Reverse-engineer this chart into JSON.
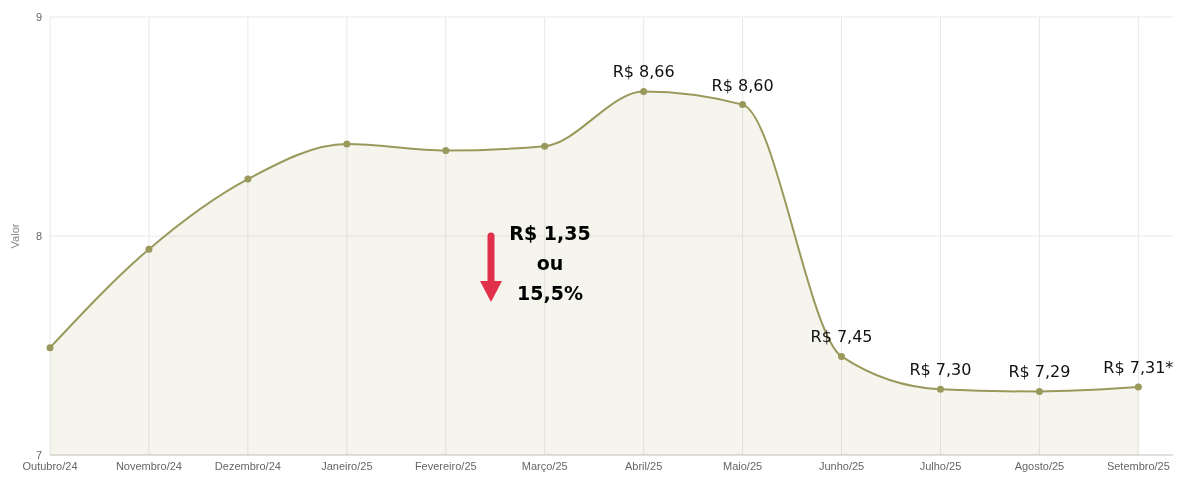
{
  "chart_data": {
    "type": "area",
    "ylabel": "Valor",
    "categories": [
      "Outubro/24",
      "Novembro/24",
      "Dezembro/24",
      "Janeiro/25",
      "Fevereiro/25",
      "Março/25",
      "Abril/25",
      "Maio/25",
      "Junho/25",
      "Julho/25",
      "Agosto/25",
      "Setembro/25"
    ],
    "series": [
      {
        "color": "#99995c",
        "values": [
          7.49,
          7.94,
          8.26,
          8.42,
          8.39,
          8.41,
          8.66,
          8.6,
          7.45,
          7.3,
          7.29,
          7.31
        ],
        "value_labels": [
          null,
          null,
          null,
          null,
          null,
          null,
          "R$ 8,66",
          "R$ 8,60",
          "R$ 7,45",
          "R$ 7,30",
          "R$ 7,29",
          "R$ 7,31*"
        ]
      }
    ],
    "ylim": [
      7,
      9
    ],
    "yticks": [
      7,
      8,
      9
    ],
    "grid": true,
    "marker": "circle",
    "annotations": [
      {
        "text": "R$ 1,35\nou\n15,5%"
      }
    ]
  }
}
